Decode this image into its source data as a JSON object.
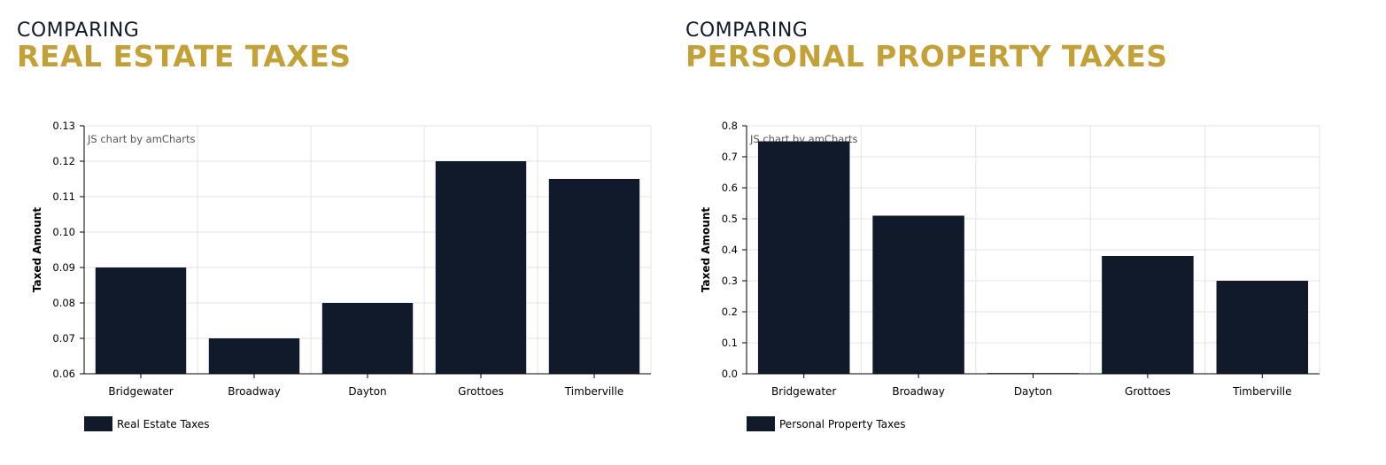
{
  "colors": {
    "bar": "#111a2a",
    "accent": "#c4a137",
    "grid": "#e3e3e3"
  },
  "charts": [
    {
      "kicker": "COMPARING",
      "title": "REAL ESTATE TAXES",
      "credit": "JS chart by amCharts"
    },
    {
      "kicker": "COMPARING",
      "title": "PERSONAL PROPERTY TAXES",
      "credit": "JS chart by amCharts"
    }
  ],
  "chart_data": [
    {
      "type": "bar",
      "categories": [
        "Bridgewater",
        "Broadway",
        "Dayton",
        "Grottoes",
        "Timberville"
      ],
      "series": [
        {
          "name": "Real Estate Taxes",
          "values": [
            0.09,
            0.07,
            0.08,
            0.12,
            0.115
          ]
        }
      ],
      "title": "",
      "xlabel": "",
      "ylabel": "Taxed Amount",
      "ylim": [
        0.06,
        0.13
      ],
      "yticks": [
        "0.13",
        "0.12",
        "0.11",
        "0.10",
        "0.09",
        "0.08",
        "0.07",
        "0.06"
      ],
      "grid": true,
      "legend": "bottom-left"
    },
    {
      "type": "bar",
      "categories": [
        "Bridgewater",
        "Broadway",
        "Dayton",
        "Grottoes",
        "Timberville"
      ],
      "series": [
        {
          "name": "Personal Property Taxes",
          "values": [
            0.75,
            0.51,
            0.0,
            0.38,
            0.3
          ]
        }
      ],
      "title": "",
      "xlabel": "",
      "ylabel": "Taxed Amount",
      "ylim": [
        0.0,
        0.8
      ],
      "yticks": [
        "0.8",
        "0.7",
        "0.6",
        "0.5",
        "0.4",
        "0.3",
        "0.2",
        "0.1",
        "0.0"
      ],
      "grid": true,
      "legend": "bottom-left"
    }
  ]
}
